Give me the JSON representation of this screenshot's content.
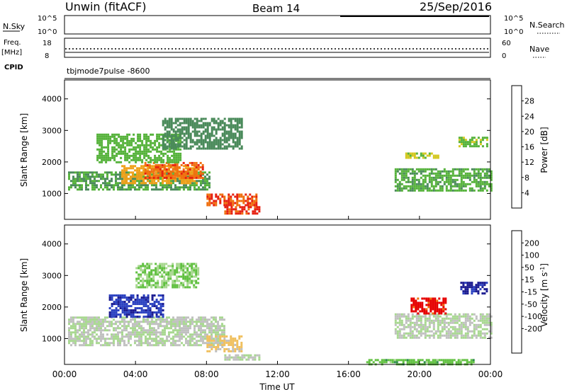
{
  "header": {
    "title": "Unwin (fitACF)",
    "beam": "Beam 14",
    "date": "25/Sep/2016"
  },
  "top_panels": {
    "nsky_label": "N.Sky",
    "nsearch_label": "N.Search",
    "noise_ticks": [
      "10^5",
      "10^0"
    ],
    "freq_label": "Freq.",
    "freq_unit": "[MHz]",
    "freq_ticks": [
      "18",
      "8"
    ],
    "nave_label": "Nave",
    "nave_ticks": [
      "60",
      "0"
    ],
    "cpid_label": "CPID",
    "cpid_text": "tbjmode7pulse -8600"
  },
  "power_panel": {
    "ylabel": "Slant Range [km]",
    "yticks": [
      "4000",
      "3000",
      "2000",
      "1000"
    ],
    "colorbar_label": "Power [dB]",
    "colorbar_ticks": [
      "28",
      "24",
      "20",
      "16",
      "12",
      "8",
      "4"
    ],
    "colorbar_colors": [
      "#0000ff",
      "#1e3c9c",
      "#4a8a5a",
      "#55b23a",
      "#d4c820",
      "#f0a018",
      "#f07010",
      "#e62010"
    ]
  },
  "velocity_panel": {
    "ylabel": "Slant Range [km]",
    "yticks": [
      "4000",
      "3000",
      "2000",
      "1000"
    ],
    "colorbar_label": "Velocity [m s",
    "colorbar_label_exp": "-1",
    "colorbar_ticks": [
      "200",
      "100",
      "50",
      "15",
      "-15",
      "-50",
      "-100",
      "-200"
    ],
    "colorbar_colors": [
      "#e60000",
      "#f0700a",
      "#f5a000",
      "#f0c060",
      "#c0c0c0",
      "#a8d890",
      "#60c040",
      "#2a8a4a",
      "#2a40c0",
      "#1a1a90"
    ]
  },
  "xaxis": {
    "xlabel": "Time UT",
    "ticks": [
      "00:00",
      "04:00",
      "08:00",
      "12:00",
      "16:00",
      "20:00",
      "00:00"
    ]
  },
  "chart_data": {
    "type": "heatmap",
    "title": "Unwin (fitACF)",
    "xlabel": "Time UT",
    "ylabel": "Slant Range [km]",
    "x_range_hours": [
      0,
      24
    ],
    "y_range_km": [
      180,
      4600
    ],
    "panels": [
      {
        "name": "Power",
        "unit": "dB",
        "clim": [
          0,
          32
        ],
        "regions": [
          {
            "t": [
              0.2,
              8.2
            ],
            "r": [
              1100,
              1700
            ],
            "value": 12
          },
          {
            "t": [
              3.2,
              7.5
            ],
            "r": [
              1300,
              1900
            ],
            "value": 22
          },
          {
            "t": [
              4.5,
              7.8
            ],
            "r": [
              1500,
              2000
            ],
            "value": 27
          },
          {
            "t": [
              1.8,
              6.5
            ],
            "r": [
              2000,
              2900
            ],
            "value": 14
          },
          {
            "t": [
              5.5,
              10.0
            ],
            "r": [
              2400,
              3400
            ],
            "value": 10
          },
          {
            "t": [
              8.0,
              10.8
            ],
            "r": [
              650,
              1000
            ],
            "value": 28
          },
          {
            "t": [
              9.0,
              11.0
            ],
            "r": [
              350,
              600
            ],
            "value": 29
          },
          {
            "t": [
              18.6,
              24.0
            ],
            "r": [
              1100,
              1800
            ],
            "value": 13
          },
          {
            "t": [
              19.2,
              21.0
            ],
            "r": [
              2100,
              2300
            ],
            "value": 17
          },
          {
            "t": [
              22.2,
              23.8
            ],
            "r": [
              2500,
              2800
            ],
            "value": 15
          }
        ]
      },
      {
        "name": "Velocity",
        "unit": "m s-1",
        "clim": [
          -200,
          200
        ],
        "regions": [
          {
            "t": [
              0.2,
              9.0
            ],
            "r": [
              800,
              1700
            ],
            "value": 0
          },
          {
            "t": [
              2.5,
              5.5
            ],
            "r": [
              1700,
              2400
            ],
            "value": 150
          },
          {
            "t": [
              4.0,
              7.5
            ],
            "r": [
              2600,
              3400
            ],
            "value": 40
          },
          {
            "t": [
              8.0,
              10.0
            ],
            "r": [
              600,
              1100
            ],
            "value": -50
          },
          {
            "t": [
              9.0,
              11.0
            ],
            "r": [
              300,
              500
            ],
            "value": 0
          },
          {
            "t": [
              18.6,
              24.0
            ],
            "r": [
              1000,
              1800
            ],
            "value": 0
          },
          {
            "t": [
              19.5,
              21.5
            ],
            "r": [
              1800,
              2300
            ],
            "value": -180
          },
          {
            "t": [
              22.3,
              23.8
            ],
            "r": [
              2400,
              2800
            ],
            "value": 170
          },
          {
            "t": [
              17.0,
              23.0
            ],
            "r": [
              200,
              350
            ],
            "value": 60
          }
        ]
      }
    ]
  }
}
